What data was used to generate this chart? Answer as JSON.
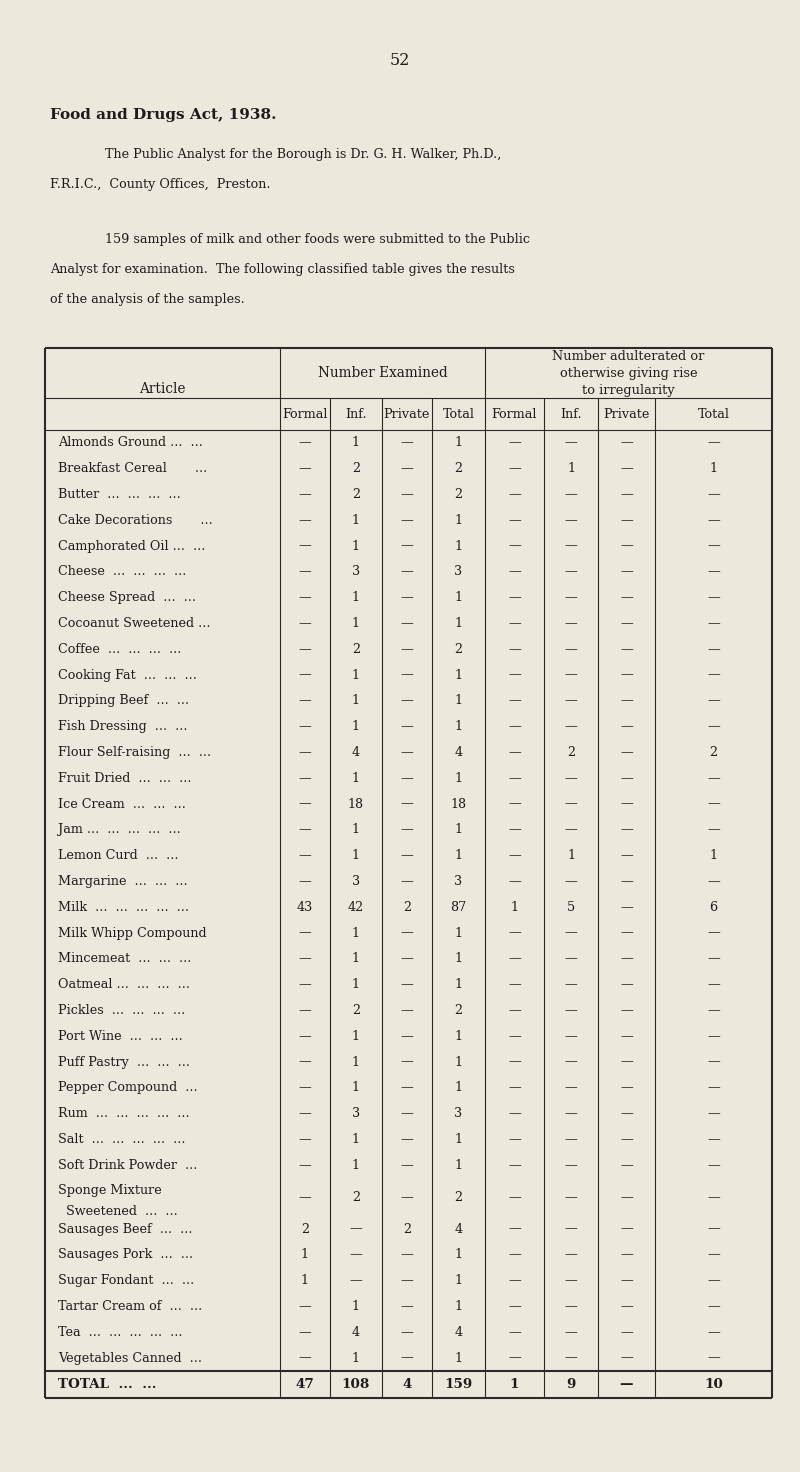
{
  "page_number": "52",
  "title_bold": "Food and Drugs Act, 1938.",
  "para1_indent": "The Public Analyst for the Borough is Dr. G. H. Walker, Ph.D.,",
  "para1_cont": "F.R.I.C.,  County Offices,  Preston.",
  "para2_indent": "159 samples of milk and other foods were submitted to the Public",
  "para2_cont1": "Analyst for examination.  The following classified table gives the results",
  "para2_cont2": "of the analysis of the samples.",
  "col_header1": "Article",
  "col_header2": "Number Examined",
  "col_header3": "Number adulterated or\notherwise giving rise\nto irregularity",
  "sub_headers": [
    "Formal",
    "Inf.",
    "Private",
    "Total",
    "Formal",
    "Inf.",
    "Private",
    "Total"
  ],
  "rows": [
    [
      "Almonds Ground ...  ...",
      "—",
      "1",
      "—",
      "1",
      "—",
      "—",
      "—",
      "—"
    ],
    [
      "Breakfast Cereal       ...",
      "—",
      "2",
      "—",
      "2",
      "—",
      "1",
      "—",
      "1"
    ],
    [
      "Butter  ...  ...  ...  ...",
      "—",
      "2",
      "—",
      "2",
      "—",
      "—",
      "—",
      "—"
    ],
    [
      "Cake Decorations       ...",
      "—",
      "1",
      "—",
      "1",
      "—",
      "—",
      "—",
      "—"
    ],
    [
      "Camphorated Oil ...  ...",
      "—",
      "1",
      "—",
      "1",
      "—",
      "—",
      "—",
      "—"
    ],
    [
      "Cheese  ...  ...  ...  ...",
      "—",
      "3",
      "—",
      "3",
      "—",
      "—",
      "—",
      "—"
    ],
    [
      "Cheese Spread  ...  ...",
      "—",
      "1",
      "—",
      "1",
      "—",
      "—",
      "—",
      "—"
    ],
    [
      "Cocoanut Sweetened ...",
      "—",
      "1",
      "—",
      "1",
      "—",
      "—",
      "—",
      "—"
    ],
    [
      "Coffee  ...  ...  ...  ...",
      "—",
      "2",
      "—",
      "2",
      "—",
      "—",
      "—",
      "—"
    ],
    [
      "Cooking Fat  ...  ...  ...",
      "—",
      "1",
      "—",
      "1",
      "—",
      "—",
      "—",
      "—"
    ],
    [
      "Dripping Beef  ...  ...",
      "—",
      "1",
      "—",
      "1",
      "—",
      "—",
      "—",
      "—"
    ],
    [
      "Fish Dressing  ...  ...",
      "—",
      "1",
      "—",
      "1",
      "—",
      "—",
      "—",
      "—"
    ],
    [
      "Flour Self-raising  ...  ...",
      "—",
      "4",
      "—",
      "4",
      "—",
      "2",
      "—",
      "2"
    ],
    [
      "Fruit Dried  ...  ...  ...",
      "—",
      "1",
      "—",
      "1",
      "—",
      "—",
      "—",
      "—"
    ],
    [
      "Ice Cream  ...  ...  ...",
      "—",
      "18",
      "—",
      "18",
      "—",
      "—",
      "—",
      "—"
    ],
    [
      "Jam ...  ...  ...  ...  ...",
      "—",
      "1",
      "—",
      "1",
      "—",
      "—",
      "—",
      "—"
    ],
    [
      "Lemon Curd  ...  ...",
      "—",
      "1",
      "—",
      "1",
      "—",
      "1",
      "—",
      "1"
    ],
    [
      "Margarine  ...  ...  ...",
      "—",
      "3",
      "—",
      "3",
      "—",
      "—",
      "—",
      "—"
    ],
    [
      "Milk  ...  ...  ...  ...  ...",
      "43",
      "42",
      "2",
      "87",
      "1",
      "5",
      "—",
      "6"
    ],
    [
      "Milk Whipp Compound",
      "—",
      "1",
      "—",
      "1",
      "—",
      "—",
      "—",
      "—"
    ],
    [
      "Mincemeat  ...  ...  ...",
      "—",
      "1",
      "—",
      "1",
      "—",
      "—",
      "—",
      "—"
    ],
    [
      "Oatmeal ...  ...  ...  ...",
      "—",
      "1",
      "—",
      "1",
      "—",
      "—",
      "—",
      "—"
    ],
    [
      "Pickles  ...  ...  ...  ...",
      "—",
      "2",
      "—",
      "2",
      "—",
      "—",
      "—",
      "—"
    ],
    [
      "Port Wine  ...  ...  ...",
      "—",
      "1",
      "—",
      "1",
      "—",
      "—",
      "—",
      "—"
    ],
    [
      "Puff Pastry  ...  ...  ...",
      "—",
      "1",
      "—",
      "1",
      "—",
      "—",
      "—",
      "—"
    ],
    [
      "Pepper Compound  ...",
      "—",
      "1",
      "—",
      "1",
      "—",
      "—",
      "—",
      "—"
    ],
    [
      "Rum  ...  ...  ...  ...  ...",
      "—",
      "3",
      "—",
      "3",
      "—",
      "—",
      "—",
      "—"
    ],
    [
      "Salt  ...  ...  ...  ...  ...",
      "—",
      "1",
      "—",
      "1",
      "—",
      "—",
      "—",
      "—"
    ],
    [
      "Soft Drink Powder  ...",
      "—",
      "1",
      "—",
      "1",
      "—",
      "—",
      "—",
      "—"
    ],
    [
      "Sponge Mixture",
      "—",
      "2",
      "—",
      "2",
      "—",
      "—",
      "—",
      "—"
    ],
    [
      "Sausages Beef  ...  ...",
      "2",
      "—",
      "2",
      "4",
      "—",
      "—",
      "—",
      "—"
    ],
    [
      "Sausages Pork  ...  ...",
      "1",
      "—",
      "—",
      "1",
      "—",
      "—",
      "—",
      "—"
    ],
    [
      "Sugar Fondant  ...  ...",
      "1",
      "—",
      "—",
      "1",
      "—",
      "—",
      "—",
      "—"
    ],
    [
      "Tartar Cream of  ...  ...",
      "—",
      "1",
      "—",
      "1",
      "—",
      "—",
      "—",
      "—"
    ],
    [
      "Tea  ...  ...  ...  ...  ...",
      "—",
      "4",
      "—",
      "4",
      "—",
      "—",
      "—",
      "—"
    ],
    [
      "Vegetables Canned  ...",
      "—",
      "1",
      "—",
      "1",
      "—",
      "—",
      "—",
      "—"
    ]
  ],
  "sponge_row_idx": 29,
  "sponge_second_line": "  Sweetened  ...  ...",
  "total_row": [
    "TOTAL  ...  ...",
    "47",
    "108",
    "4",
    "159",
    "1",
    "9",
    "—",
    "10"
  ],
  "bg_color": "#ede8dc",
  "text_color": "#1c1c1c",
  "line_color": "#2a2a2a",
  "fs_body": 9.2,
  "fs_header": 9.8,
  "fs_title": 11.0,
  "fs_page": 11.5
}
